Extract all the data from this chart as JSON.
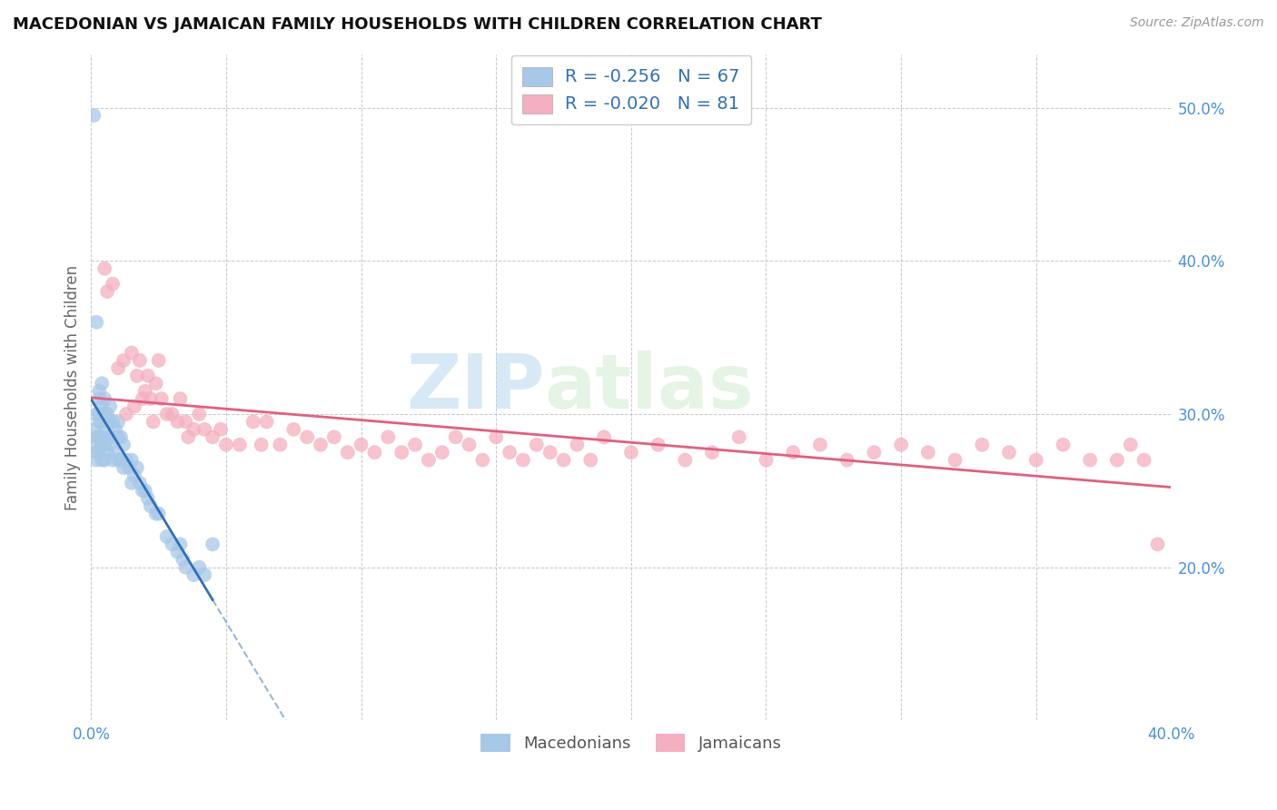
{
  "title": "MACEDONIAN VS JAMAICAN FAMILY HOUSEHOLDS WITH CHILDREN CORRELATION CHART",
  "source": "Source: ZipAtlas.com",
  "ylabel": "Family Households with Children",
  "xlim": [
    0.0,
    0.4
  ],
  "ylim": [
    0.1,
    0.535
  ],
  "x_ticks": [
    0.0,
    0.05,
    0.1,
    0.15,
    0.2,
    0.25,
    0.3,
    0.35,
    0.4
  ],
  "y_ticks": [
    0.1,
    0.2,
    0.3,
    0.4,
    0.5
  ],
  "macedonian_R": -0.256,
  "macedonian_N": 67,
  "jamaican_R": -0.02,
  "jamaican_N": 81,
  "macedonian_color": "#a8c8e8",
  "jamaican_color": "#f4afc0",
  "macedonian_line_color": "#3070b8",
  "jamaican_line_color": "#e06080",
  "watermark_zip": "ZIP",
  "watermark_atlas": "atlas",
  "macedonian_x": [
    0.001,
    0.001,
    0.001,
    0.002,
    0.002,
    0.002,
    0.002,
    0.002,
    0.003,
    0.003,
    0.003,
    0.003,
    0.003,
    0.003,
    0.004,
    0.004,
    0.004,
    0.004,
    0.004,
    0.004,
    0.005,
    0.005,
    0.005,
    0.005,
    0.005,
    0.006,
    0.006,
    0.006,
    0.006,
    0.007,
    0.007,
    0.007,
    0.008,
    0.008,
    0.008,
    0.009,
    0.009,
    0.01,
    0.01,
    0.01,
    0.011,
    0.011,
    0.012,
    0.012,
    0.013,
    0.014,
    0.015,
    0.015,
    0.016,
    0.017,
    0.018,
    0.019,
    0.02,
    0.021,
    0.022,
    0.024,
    0.025,
    0.028,
    0.03,
    0.032,
    0.033,
    0.034,
    0.035,
    0.038,
    0.04,
    0.042,
    0.045
  ],
  "macedonian_y": [
    0.495,
    0.29,
    0.28,
    0.36,
    0.3,
    0.285,
    0.275,
    0.27,
    0.315,
    0.31,
    0.3,
    0.295,
    0.285,
    0.275,
    0.32,
    0.305,
    0.295,
    0.285,
    0.28,
    0.27,
    0.31,
    0.3,
    0.29,
    0.28,
    0.27,
    0.3,
    0.295,
    0.285,
    0.275,
    0.305,
    0.295,
    0.28,
    0.295,
    0.285,
    0.27,
    0.29,
    0.275,
    0.295,
    0.285,
    0.27,
    0.285,
    0.27,
    0.28,
    0.265,
    0.27,
    0.265,
    0.27,
    0.255,
    0.26,
    0.265,
    0.255,
    0.25,
    0.25,
    0.245,
    0.24,
    0.235,
    0.235,
    0.22,
    0.215,
    0.21,
    0.215,
    0.205,
    0.2,
    0.195,
    0.2,
    0.195,
    0.215
  ],
  "jamaican_x": [
    0.005,
    0.006,
    0.008,
    0.01,
    0.012,
    0.013,
    0.015,
    0.016,
    0.017,
    0.018,
    0.019,
    0.02,
    0.021,
    0.022,
    0.023,
    0.024,
    0.025,
    0.026,
    0.028,
    0.03,
    0.032,
    0.033,
    0.035,
    0.036,
    0.038,
    0.04,
    0.042,
    0.045,
    0.048,
    0.05,
    0.055,
    0.06,
    0.063,
    0.065,
    0.07,
    0.075,
    0.08,
    0.085,
    0.09,
    0.095,
    0.1,
    0.105,
    0.11,
    0.115,
    0.12,
    0.125,
    0.13,
    0.135,
    0.14,
    0.145,
    0.15,
    0.155,
    0.16,
    0.165,
    0.17,
    0.175,
    0.18,
    0.185,
    0.19,
    0.2,
    0.21,
    0.22,
    0.23,
    0.24,
    0.25,
    0.26,
    0.27,
    0.28,
    0.29,
    0.3,
    0.31,
    0.32,
    0.33,
    0.34,
    0.35,
    0.36,
    0.37,
    0.38,
    0.385,
    0.39,
    0.395
  ],
  "jamaican_y": [
    0.395,
    0.38,
    0.385,
    0.33,
    0.335,
    0.3,
    0.34,
    0.305,
    0.325,
    0.335,
    0.31,
    0.315,
    0.325,
    0.31,
    0.295,
    0.32,
    0.335,
    0.31,
    0.3,
    0.3,
    0.295,
    0.31,
    0.295,
    0.285,
    0.29,
    0.3,
    0.29,
    0.285,
    0.29,
    0.28,
    0.28,
    0.295,
    0.28,
    0.295,
    0.28,
    0.29,
    0.285,
    0.28,
    0.285,
    0.275,
    0.28,
    0.275,
    0.285,
    0.275,
    0.28,
    0.27,
    0.275,
    0.285,
    0.28,
    0.27,
    0.285,
    0.275,
    0.27,
    0.28,
    0.275,
    0.27,
    0.28,
    0.27,
    0.285,
    0.275,
    0.28,
    0.27,
    0.275,
    0.285,
    0.27,
    0.275,
    0.28,
    0.27,
    0.275,
    0.28,
    0.275,
    0.27,
    0.28,
    0.275,
    0.27,
    0.28,
    0.27,
    0.27,
    0.28,
    0.27,
    0.215
  ]
}
